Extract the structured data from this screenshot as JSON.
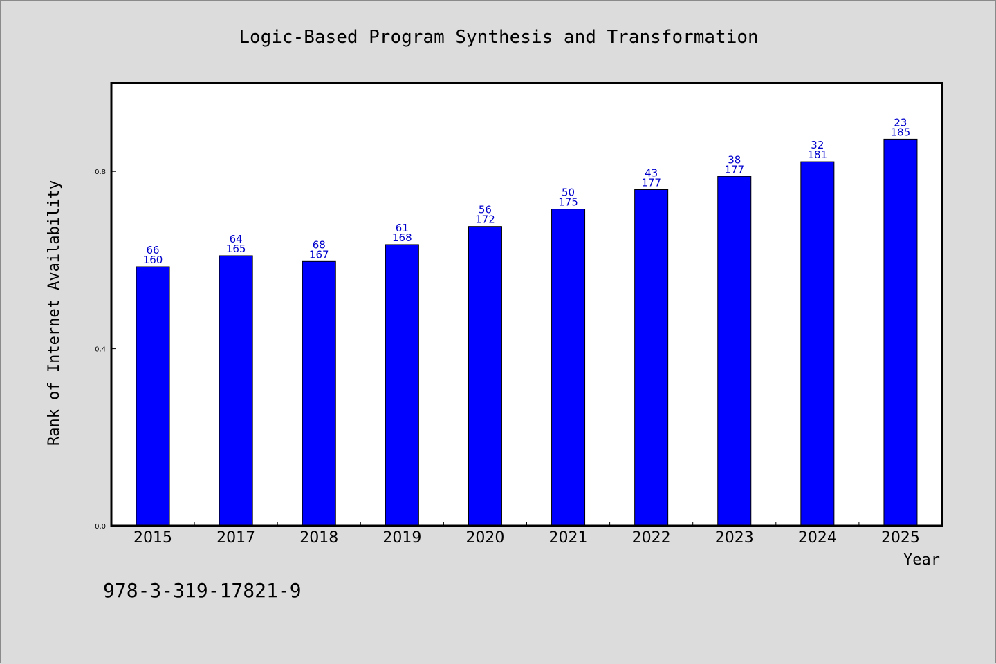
{
  "chart_data": {
    "type": "bar",
    "title": "Logic-Based Program Synthesis and Transformation",
    "xlabel": "Year",
    "ylabel": "Rank of Internet Availability",
    "categories": [
      "2015",
      "2017",
      "2018",
      "2019",
      "2020",
      "2021",
      "2022",
      "2023",
      "2024",
      "2025"
    ],
    "values": [
      0.585,
      0.61,
      0.597,
      0.635,
      0.676,
      0.715,
      0.759,
      0.789,
      0.822,
      0.873
    ],
    "labels_top": [
      "66",
      "64",
      "68",
      "61",
      "56",
      "50",
      "43",
      "38",
      "32",
      "23"
    ],
    "labels_bottom": [
      "160",
      "165",
      "167",
      "168",
      "172",
      "175",
      "177",
      "177",
      "181",
      "185"
    ],
    "ylim": [
      0,
      1.0
    ],
    "yticks": [
      0.0,
      0.4,
      0.8
    ],
    "ytick_labels": [
      "0.0",
      "0.4",
      "0.8"
    ],
    "bar_color": "#0000ff",
    "label_color": "#0000cc",
    "plot_background": "#ffffff",
    "page_background": "#dcdcdc",
    "grid": false
  },
  "footer": {
    "isbn": "978-3-319-17821-9"
  }
}
